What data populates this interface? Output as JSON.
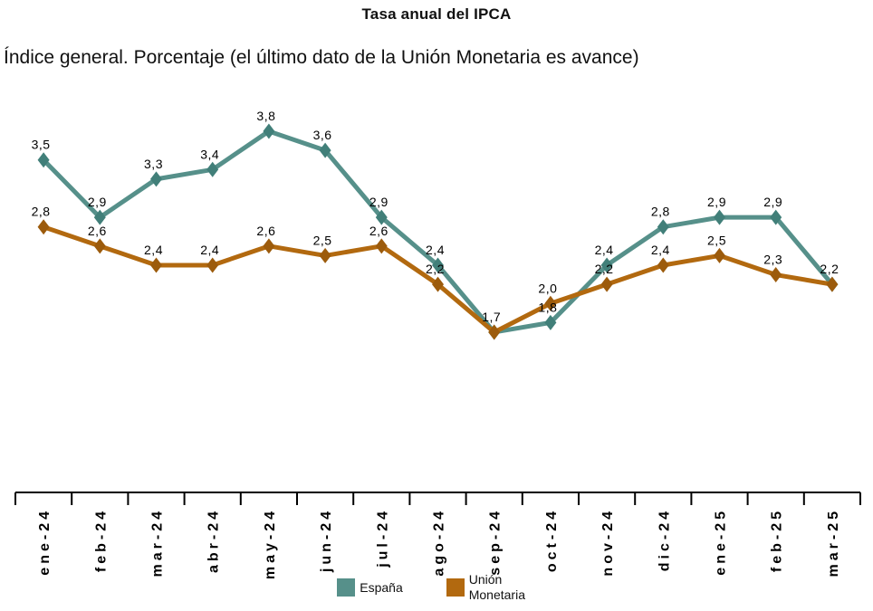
{
  "title": "Tasa anual del IPCA",
  "subtitle": "Índice general. Porcentaje (el último dato de la Unión Monetaria es avance)",
  "chart_data": {
    "type": "line",
    "title": "Tasa anual del IPCA",
    "subtitle": "Índice general. Porcentaje (el último dato de la Unión Monetaria es avance)",
    "categories": [
      "ene-24",
      "feb-24",
      "mar-24",
      "abr-24",
      "may-24",
      "jun-24",
      "jul-24",
      "ago-24",
      "sep-24",
      "oct-24",
      "nov-24",
      "dic-24",
      "ene-25",
      "feb-25",
      "mar-25"
    ],
    "series": [
      {
        "name": "España",
        "color": "#56908A",
        "marker_color": "#417F79",
        "marker_shape": "diamond",
        "values": [
          3.5,
          2.9,
          3.3,
          3.4,
          3.8,
          3.6,
          2.9,
          2.4,
          1.7,
          1.8,
          2.4,
          2.8,
          2.9,
          2.9,
          2.2
        ]
      },
      {
        "name": "Unión Monetaria",
        "color": "#B2690F",
        "marker_color": "#9C5B0C",
        "marker_shape": "diamond",
        "values": [
          2.8,
          2.6,
          2.4,
          2.4,
          2.6,
          2.5,
          2.6,
          2.2,
          1.7,
          2.0,
          2.2,
          2.4,
          2.5,
          2.3,
          2.2
        ]
      }
    ],
    "xlabel": "",
    "ylabel": "",
    "ylim": [
      1.5,
      4.0
    ],
    "grid": false,
    "y_axis_visible": false,
    "data_labels": true,
    "decimal_separator": ",",
    "legend_position": "bottom",
    "axis_color": "#000000",
    "label_color": "#000000"
  }
}
